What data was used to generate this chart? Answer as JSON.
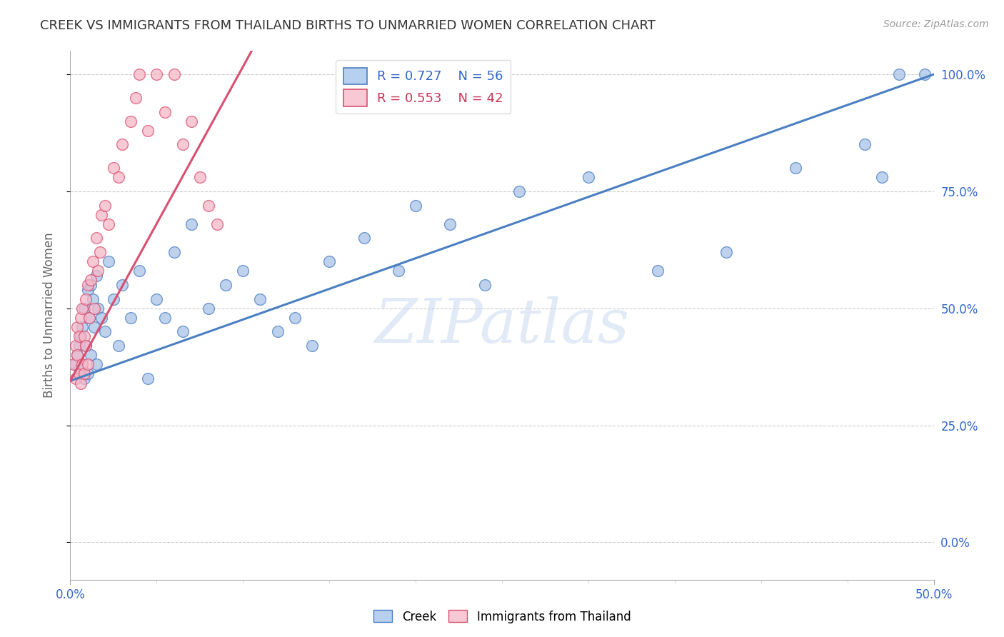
{
  "title": "CREEK VS IMMIGRANTS FROM THAILAND BIRTHS TO UNMARRIED WOMEN CORRELATION CHART",
  "source": "Source: ZipAtlas.com",
  "ylabel": "Births to Unmarried Women",
  "creek_R": 0.727,
  "creek_N": 56,
  "thailand_R": 0.553,
  "thailand_N": 42,
  "creek_color": "#aac4e8",
  "thailand_color": "#f5b8c8",
  "creek_line_color": "#4a7fc1",
  "thailand_line_color": "#d94f70",
  "legend_creek_fill": "#b8d0f0",
  "legend_thailand_fill": "#f8c8d4",
  "watermark_text": "ZIPatlas",
  "xlim": [
    0.0,
    0.5
  ],
  "ylim": [
    -0.08,
    1.05
  ],
  "ytick_vals": [
    0.0,
    0.25,
    0.5,
    0.75,
    1.0
  ],
  "ytick_labels": [
    "0.0%",
    "25.0%",
    "50.0%",
    "75.0%",
    "100.0%"
  ],
  "creek_x": [
    0.003,
    0.004,
    0.005,
    0.005,
    0.006,
    0.007,
    0.007,
    0.008,
    0.008,
    0.009,
    0.01,
    0.01,
    0.011,
    0.012,
    0.012,
    0.013,
    0.014,
    0.015,
    0.015,
    0.016,
    0.018,
    0.02,
    0.022,
    0.025,
    0.028,
    0.03,
    0.035,
    0.04,
    0.045,
    0.05,
    0.055,
    0.06,
    0.065,
    0.07,
    0.08,
    0.09,
    0.1,
    0.11,
    0.12,
    0.13,
    0.14,
    0.15,
    0.17,
    0.19,
    0.2,
    0.22,
    0.24,
    0.26,
    0.3,
    0.34,
    0.38,
    0.42,
    0.46,
    0.47,
    0.48,
    0.495
  ],
  "creek_y": [
    0.38,
    0.4,
    0.37,
    0.42,
    0.44,
    0.38,
    0.46,
    0.35,
    0.5,
    0.42,
    0.36,
    0.54,
    0.48,
    0.4,
    0.55,
    0.52,
    0.46,
    0.38,
    0.57,
    0.5,
    0.48,
    0.45,
    0.6,
    0.52,
    0.42,
    0.55,
    0.48,
    0.58,
    0.35,
    0.52,
    0.48,
    0.62,
    0.45,
    0.68,
    0.5,
    0.55,
    0.58,
    0.52,
    0.45,
    0.48,
    0.42,
    0.6,
    0.65,
    0.58,
    0.72,
    0.68,
    0.55,
    0.75,
    0.78,
    0.58,
    0.62,
    0.8,
    0.85,
    0.78,
    1.0,
    1.0
  ],
  "thailand_x": [
    0.002,
    0.003,
    0.003,
    0.004,
    0.004,
    0.005,
    0.005,
    0.006,
    0.006,
    0.007,
    0.007,
    0.008,
    0.008,
    0.009,
    0.009,
    0.01,
    0.01,
    0.011,
    0.012,
    0.013,
    0.014,
    0.015,
    0.016,
    0.017,
    0.018,
    0.02,
    0.022,
    0.025,
    0.028,
    0.03,
    0.035,
    0.038,
    0.04,
    0.045,
    0.05,
    0.055,
    0.06,
    0.065,
    0.07,
    0.075,
    0.08,
    0.085
  ],
  "thailand_y": [
    0.38,
    0.35,
    0.42,
    0.4,
    0.46,
    0.36,
    0.44,
    0.34,
    0.48,
    0.38,
    0.5,
    0.36,
    0.44,
    0.42,
    0.52,
    0.38,
    0.55,
    0.48,
    0.56,
    0.6,
    0.5,
    0.65,
    0.58,
    0.62,
    0.7,
    0.72,
    0.68,
    0.8,
    0.78,
    0.85,
    0.9,
    0.95,
    1.0,
    0.88,
    1.0,
    0.92,
    1.0,
    0.85,
    0.9,
    0.78,
    0.72,
    0.68
  ],
  "creek_line_x": [
    0.0,
    0.5
  ],
  "creek_line_y": [
    0.345,
    1.0
  ],
  "thailand_line_x": [
    0.0,
    0.105
  ],
  "thailand_line_y": [
    0.345,
    1.05
  ]
}
